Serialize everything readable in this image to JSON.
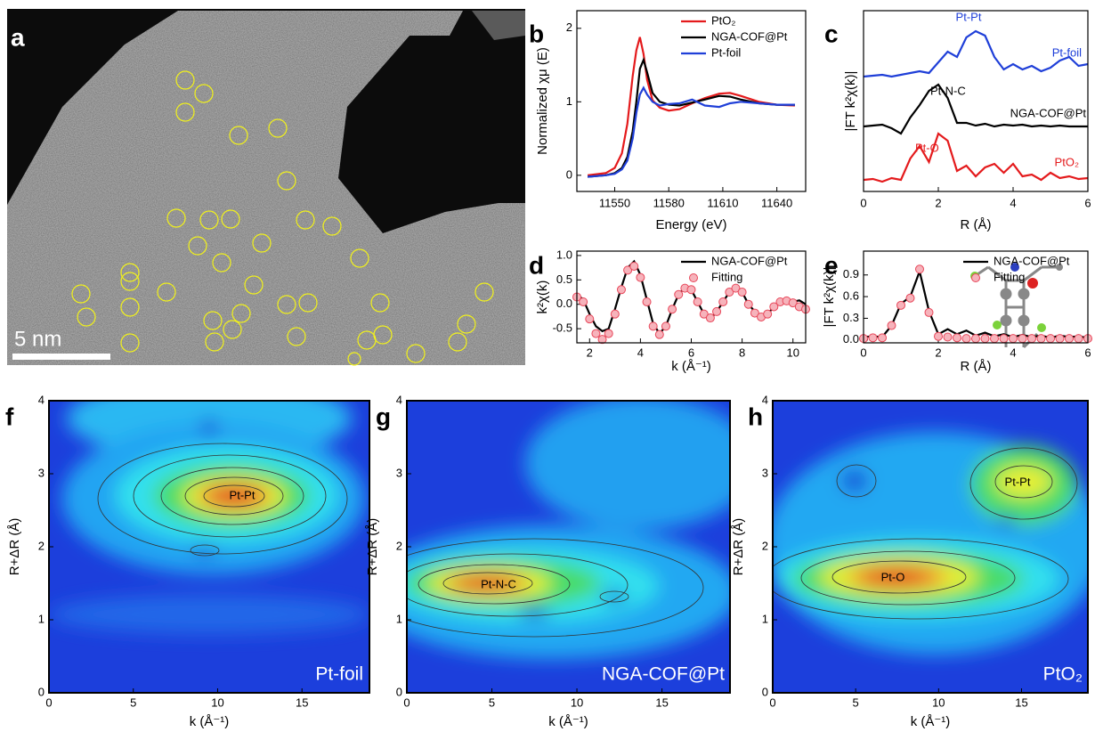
{
  "chart_data": [
    {
      "type": "image",
      "label": "a",
      "scale_bar": "5 nm"
    },
    {
      "type": "line",
      "label": "b",
      "x": [
        11535,
        11545,
        11550,
        11554,
        11557,
        11560,
        11562,
        11564,
        11566,
        11568,
        11571,
        11575,
        11580,
        11586,
        11593,
        11600,
        11608,
        11614,
        11620,
        11630,
        11640,
        11650
      ],
      "series": [
        {
          "name": "PtO₂",
          "color": "#e41a1c",
          "values": [
            0,
            0.03,
            0.1,
            0.3,
            0.7,
            1.35,
            1.7,
            1.88,
            1.65,
            1.3,
            1.02,
            0.92,
            0.88,
            0.9,
            0.98,
            1.05,
            1.11,
            1.12,
            1.08,
            1.0,
            0.96,
            0.95
          ]
        },
        {
          "name": "NGA-COF@Pt",
          "color": "#000000",
          "values": [
            -0.02,
            0,
            0.03,
            0.1,
            0.25,
            0.6,
            1.0,
            1.45,
            1.57,
            1.4,
            1.12,
            1.0,
            0.96,
            0.95,
            0.99,
            1.03,
            1.08,
            1.07,
            1.03,
            0.98,
            0.96,
            0.96
          ]
        },
        {
          "name": "Pt-foil",
          "color": "#1f3fd8",
          "values": [
            -0.02,
            0,
            0.02,
            0.08,
            0.2,
            0.5,
            0.85,
            1.1,
            1.19,
            1.1,
            1.0,
            0.95,
            0.97,
            0.98,
            1.03,
            0.95,
            0.93,
            0.98,
            1.0,
            0.98,
            0.96,
            0.96
          ]
        }
      ],
      "xlim": [
        11529,
        11656
      ],
      "xticks": [
        11550,
        11580,
        11610,
        11640
      ],
      "ylim": [
        -0.22,
        2.24
      ],
      "yticks": [
        0,
        1,
        2
      ],
      "xlabel": "Energy (eV)",
      "ylabel": "Normalized χμ (E)",
      "legend": "upper right"
    },
    {
      "type": "line",
      "label": "c",
      "x": [
        0,
        0.25,
        0.5,
        0.75,
        1,
        1.25,
        1.5,
        1.75,
        2,
        2.25,
        2.5,
        2.75,
        3,
        3.25,
        3.5,
        3.75,
        4,
        4.25,
        4.5,
        4.75,
        5,
        5.25,
        5.5,
        5.75,
        6
      ],
      "series": [
        {
          "name": "Pt-foil",
          "color": "#1f3fd8",
          "values": [
            7.2,
            7.25,
            7.3,
            7.2,
            7.3,
            7.4,
            7.5,
            7.4,
            8.0,
            8.6,
            8.3,
            9.4,
            9.75,
            9.5,
            8.3,
            7.6,
            7.9,
            7.6,
            7.8,
            7.5,
            7.7,
            8.1,
            8.3,
            7.8,
            7.9
          ]
        },
        {
          "name": "NGA-COF@Pt",
          "color": "#000000",
          "values": [
            4.4,
            4.45,
            4.5,
            4.3,
            4.0,
            4.9,
            5.6,
            6.4,
            6.75,
            6.0,
            4.6,
            4.6,
            4.45,
            4.55,
            4.4,
            4.5,
            4.45,
            4.5,
            4.4,
            4.45,
            4.4,
            4.45,
            4.4,
            4.4,
            4.4
          ]
        },
        {
          "name": "PtO₂",
          "color": "#e41a1c",
          "values": [
            1.4,
            1.45,
            1.3,
            1.5,
            1.4,
            2.6,
            3.3,
            2.4,
            4.0,
            3.6,
            1.9,
            2.2,
            1.6,
            2.1,
            2.3,
            1.8,
            2.3,
            1.6,
            1.7,
            1.4,
            1.8,
            1.5,
            1.6,
            1.45,
            1.5
          ]
        }
      ],
      "annotations": [
        "Pt-Pt",
        "Pt-N-C",
        "Pt-O"
      ],
      "xlim": [
        0,
        6
      ],
      "xticks": [
        0,
        2,
        4,
        6
      ],
      "ylim": [
        0.75,
        10.9
      ],
      "xlabel": "R (Å)",
      "ylabel": "|FT k²χ(k)|"
    },
    {
      "type": "line",
      "label": "d",
      "x": [
        1.5,
        1.75,
        2,
        2.25,
        2.5,
        2.75,
        3,
        3.25,
        3.5,
        3.75,
        4,
        4.25,
        4.5,
        4.75,
        5,
        5.25,
        5.5,
        5.75,
        6,
        6.25,
        6.5,
        6.75,
        7,
        7.25,
        7.5,
        7.75,
        8,
        8.25,
        8.5,
        8.75,
        9,
        9.25,
        9.5,
        9.75,
        10,
        10.25,
        10.5
      ],
      "series": [
        {
          "name": "NGA-COF@Pt",
          "color": "#000000",
          "values": [
            0.2,
            0.1,
            -0.2,
            -0.45,
            -0.55,
            -0.5,
            -0.1,
            0.35,
            0.75,
            0.88,
            0.6,
            0.1,
            -0.4,
            -0.6,
            -0.45,
            -0.1,
            0.2,
            0.35,
            0.3,
            0.05,
            -0.2,
            -0.3,
            -0.15,
            0.05,
            0.25,
            0.35,
            0.25,
            0.0,
            -0.15,
            -0.25,
            -0.2,
            -0.05,
            0.05,
            0.08,
            0.05,
            0.08,
            0.0
          ]
        },
        {
          "name": "Fitting",
          "type": "scatter",
          "color": "#e8475a",
          "values": [
            0.15,
            0.05,
            -0.3,
            -0.6,
            -0.72,
            -0.6,
            -0.2,
            0.3,
            0.7,
            0.78,
            0.55,
            0.05,
            -0.45,
            -0.62,
            -0.45,
            -0.1,
            0.2,
            0.33,
            0.3,
            0.05,
            -0.2,
            -0.28,
            -0.15,
            0.05,
            0.25,
            0.33,
            0.25,
            0.0,
            -0.18,
            -0.26,
            -0.2,
            -0.05,
            0.05,
            0.07,
            0.03,
            -0.05,
            -0.1
          ]
        }
      ],
      "xlim": [
        1.5,
        10.5
      ],
      "xticks": [
        2,
        4,
        6,
        8,
        10
      ],
      "ylim": [
        -0.79,
        1.09
      ],
      "yticks": [
        -0.5,
        {
          "value": 0,
          "label": "0.0"
        },
        0.5,
        {
          "value": 1,
          "label": "1.0"
        }
      ],
      "xlabel": "k (Å⁻¹)",
      "ylabel": "k²χ(k)",
      "legend": "upper right"
    },
    {
      "type": "line",
      "label": "e",
      "x": [
        0,
        0.25,
        0.5,
        0.75,
        1,
        1.25,
        1.5,
        1.75,
        2,
        2.25,
        2.5,
        2.75,
        3,
        3.25,
        3.5,
        3.75,
        4,
        4.25,
        4.5,
        4.75,
        5,
        5.25,
        5.5,
        5.75,
        6
      ],
      "series": [
        {
          "name": "NGA-COF@Pt",
          "color": "#000000",
          "values": [
            0.04,
            0.05,
            0.04,
            0.2,
            0.5,
            0.6,
            0.95,
            0.4,
            0.08,
            0.15,
            0.08,
            0.13,
            0.06,
            0.1,
            0.05,
            0.08,
            0.04,
            0.07,
            0.04,
            0.06,
            0.03,
            0.06,
            0.04,
            0.05,
            0.03
          ]
        },
        {
          "name": "Fitting",
          "type": "scatter",
          "color": "#e8475a",
          "values": [
            0.02,
            0.03,
            0.03,
            0.2,
            0.48,
            0.58,
            0.98,
            0.38,
            0.05,
            0.04,
            0.03,
            0.02,
            0.02,
            0.02,
            0.02,
            0.02,
            0.02,
            0.02,
            0.02,
            0.02,
            0.02,
            0.02,
            0.02,
            0.02,
            0.02
          ]
        }
      ],
      "xlim": [
        0,
        6
      ],
      "xticks": [
        0,
        2,
        4,
        6
      ],
      "ylim": [
        -0.04,
        1.23
      ],
      "yticks": [
        {
          "value": 0,
          "label": "0.0"
        },
        0.3,
        0.6,
        0.9
      ],
      "xlabel": "R (Å)",
      "ylabel": "|FT k²χ(k)|",
      "legend": "upper right"
    },
    {
      "type": "contour",
      "label": "f",
      "annotation": "Pt-Pt",
      "sample": "Pt-foil",
      "xlim": [
        0,
        19
      ],
      "xticks": [
        0,
        5,
        10,
        15
      ],
      "ylim": [
        0,
        4
      ],
      "yticks": [
        0,
        1,
        2,
        3,
        4
      ],
      "xlabel": "k (Å⁻¹)",
      "ylabel": "R+ΔR (Å)"
    },
    {
      "type": "contour",
      "label": "g",
      "annotation": "Pt-N-C",
      "sample": "NGA-COF@Pt",
      "xlim": [
        0,
        19
      ],
      "xticks": [
        0,
        5,
        10,
        15
      ],
      "ylim": [
        0,
        4
      ],
      "yticks": [
        0,
        1,
        2,
        3,
        4
      ],
      "xlabel": "k (Å⁻¹)",
      "ylabel": "R+ΔR (Å)"
    },
    {
      "type": "contour",
      "label": "h",
      "annotations": [
        "Pt-O",
        "Pt-Pt"
      ],
      "sample": "PtO₂",
      "xlim": [
        0,
        19
      ],
      "xticks": [
        0,
        5,
        10,
        15
      ],
      "ylim": [
        0,
        4
      ],
      "yticks": [
        0,
        1,
        2,
        3,
        4
      ],
      "xlabel": "k (Å⁻¹)",
      "ylabel": "R+ΔR (Å)"
    }
  ]
}
